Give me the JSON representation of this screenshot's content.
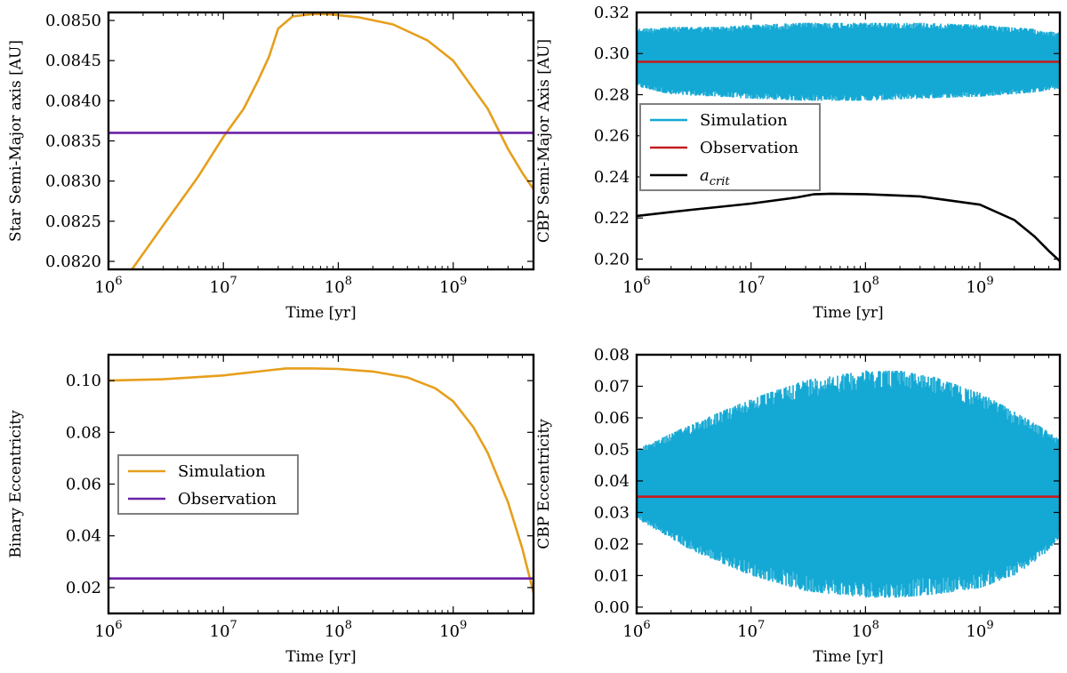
{
  "chart_data": [
    {
      "id": "star-a",
      "type": "line",
      "title": "",
      "xlabel": "Time [yr]",
      "ylabel": "Star Semi-Major axis [AU]",
      "xscale": "log",
      "xlim": [
        1000000,
        5000000000
      ],
      "ylim": [
        0.0819,
        0.0851
      ],
      "xticks": [
        {
          "value": 1000000,
          "base": "10",
          "exp": "6"
        },
        {
          "value": 10000000,
          "base": "10",
          "exp": "7"
        },
        {
          "value": 100000000,
          "base": "10",
          "exp": "8"
        },
        {
          "value": 1000000000,
          "base": "10",
          "exp": "9"
        }
      ],
      "yticks": [
        {
          "value": 0.082,
          "label": "0.0820"
        },
        {
          "value": 0.0825,
          "label": "0.0825"
        },
        {
          "value": 0.083,
          "label": "0.0830"
        },
        {
          "value": 0.0835,
          "label": "0.0835"
        },
        {
          "value": 0.084,
          "label": "0.0840"
        },
        {
          "value": 0.0845,
          "label": "0.0845"
        },
        {
          "value": 0.085,
          "label": "0.0850"
        }
      ],
      "series": [
        {
          "name": "Simulation",
          "color": "#e69f1c",
          "style": "line",
          "x": [
            1600000,
            3000000,
            6000000,
            10000000,
            15000000,
            20000000,
            25000000,
            30000000,
            40000000,
            60000000,
            80000000,
            150000000,
            300000000,
            600000000,
            1000000000,
            2000000000,
            3000000000,
            4000000000,
            5000000000
          ],
          "y": [
            0.0819,
            0.08245,
            0.08305,
            0.08355,
            0.0839,
            0.08425,
            0.08455,
            0.0849,
            0.08505,
            0.08508,
            0.08508,
            0.08504,
            0.08495,
            0.08475,
            0.0845,
            0.0839,
            0.0834,
            0.0831,
            0.0829
          ]
        },
        {
          "name": "Observation",
          "color": "#6a22a8",
          "style": "hline",
          "y": 0.0836
        }
      ]
    },
    {
      "id": "cbp-a",
      "type": "line",
      "title": "",
      "xlabel": "Time [yr]",
      "ylabel": "CBP Semi-Major Axis [AU]",
      "xscale": "log",
      "xlim": [
        1000000,
        5000000000
      ],
      "ylim": [
        0.195,
        0.32
      ],
      "xticks": [
        {
          "value": 1000000,
          "base": "10",
          "exp": "6"
        },
        {
          "value": 10000000,
          "base": "10",
          "exp": "7"
        },
        {
          "value": 100000000,
          "base": "10",
          "exp": "8"
        },
        {
          "value": 1000000000,
          "base": "10",
          "exp": "9"
        }
      ],
      "yticks": [
        {
          "value": 0.2,
          "label": "0.20"
        },
        {
          "value": 0.22,
          "label": "0.22"
        },
        {
          "value": 0.24,
          "label": "0.24"
        },
        {
          "value": 0.26,
          "label": "0.26"
        },
        {
          "value": 0.28,
          "label": "0.28"
        },
        {
          "value": 0.3,
          "label": "0.30"
        },
        {
          "value": 0.32,
          "label": "0.32"
        }
      ],
      "series": [
        {
          "name": "Simulation",
          "color": "#14a8d4",
          "style": "oscillation",
          "x": [
            1000000,
            2000000,
            5000000,
            10000000,
            30000000,
            100000000,
            300000000,
            1000000000,
            3000000000,
            5000000000
          ],
          "upper": [
            0.312,
            0.313,
            0.313,
            0.314,
            0.315,
            0.315,
            0.315,
            0.314,
            0.312,
            0.31
          ],
          "lower": [
            0.284,
            0.28,
            0.279,
            0.278,
            0.277,
            0.277,
            0.278,
            0.279,
            0.281,
            0.283
          ]
        },
        {
          "name": "Observation",
          "color": "#c41c1c",
          "style": "hline",
          "y": 0.296
        },
        {
          "name": "a_crit",
          "color": "#000000",
          "style": "line",
          "x": [
            1000000,
            3000000,
            10000000,
            25000000,
            35000000,
            50000000,
            100000000,
            300000000,
            1000000000,
            2000000000,
            3000000000,
            4000000000,
            5000000000
          ],
          "y": [
            0.221,
            0.224,
            0.227,
            0.23,
            0.2315,
            0.2318,
            0.2316,
            0.2305,
            0.2265,
            0.219,
            0.211,
            0.204,
            0.199
          ]
        }
      ],
      "legend": {
        "position": "center-left",
        "entries": [
          {
            "label": "Simulation",
            "color": "#14a8d4"
          },
          {
            "label": "Observation",
            "color": "#c41c1c"
          },
          {
            "label_base": "a",
            "label_sub": "crit",
            "color": "#000000"
          }
        ]
      }
    },
    {
      "id": "binary-e",
      "type": "line",
      "title": "",
      "xlabel": "Time [yr]",
      "ylabel": "Binary Eccentricity",
      "xscale": "log",
      "xlim": [
        1000000,
        5000000000
      ],
      "ylim": [
        0.01,
        0.11
      ],
      "xticks": [
        {
          "value": 1000000,
          "base": "10",
          "exp": "6"
        },
        {
          "value": 10000000,
          "base": "10",
          "exp": "7"
        },
        {
          "value": 100000000,
          "base": "10",
          "exp": "8"
        },
        {
          "value": 1000000000,
          "base": "10",
          "exp": "9"
        }
      ],
      "yticks": [
        {
          "value": 0.02,
          "label": "0.02"
        },
        {
          "value": 0.04,
          "label": "0.04"
        },
        {
          "value": 0.06,
          "label": "0.06"
        },
        {
          "value": 0.08,
          "label": "0.08"
        },
        {
          "value": 0.1,
          "label": "0.10"
        }
      ],
      "series": [
        {
          "name": "Simulation",
          "color": "#e69f1c",
          "style": "line",
          "x": [
            1000000,
            3000000,
            10000000,
            25000000,
            35000000,
            60000000,
            100000000,
            200000000,
            400000000,
            700000000,
            1000000000,
            1500000000,
            2000000000,
            3000000000,
            4000000000,
            5000000000
          ],
          "y": [
            0.1,
            0.1005,
            0.102,
            0.104,
            0.1047,
            0.1047,
            0.1045,
            0.1035,
            0.1012,
            0.097,
            0.092,
            0.082,
            0.072,
            0.053,
            0.035,
            0.018
          ]
        },
        {
          "name": "Observation",
          "color": "#6a22a8",
          "style": "hline",
          "y": 0.0235
        }
      ],
      "legend": {
        "position": "center-left",
        "entries": [
          {
            "label": "Simulation",
            "color": "#e69f1c"
          },
          {
            "label": "Observation",
            "color": "#6a22a8"
          }
        ]
      }
    },
    {
      "id": "cbp-e",
      "type": "line",
      "title": "",
      "xlabel": "Time [yr]",
      "ylabel": "CBP Eccentricity",
      "xscale": "log",
      "xlim": [
        1000000,
        5000000000
      ],
      "ylim": [
        -0.002,
        0.08
      ],
      "xticks": [
        {
          "value": 1000000,
          "base": "10",
          "exp": "6"
        },
        {
          "value": 10000000,
          "base": "10",
          "exp": "7"
        },
        {
          "value": 100000000,
          "base": "10",
          "exp": "8"
        },
        {
          "value": 1000000000,
          "base": "10",
          "exp": "9"
        }
      ],
      "yticks": [
        {
          "value": 0.0,
          "label": "0.00"
        },
        {
          "value": 0.01,
          "label": "0.01"
        },
        {
          "value": 0.02,
          "label": "0.02"
        },
        {
          "value": 0.03,
          "label": "0.03"
        },
        {
          "value": 0.04,
          "label": "0.04"
        },
        {
          "value": 0.05,
          "label": "0.05"
        },
        {
          "value": 0.06,
          "label": "0.06"
        },
        {
          "value": 0.07,
          "label": "0.07"
        },
        {
          "value": 0.08,
          "label": "0.08"
        }
      ],
      "series": [
        {
          "name": "Simulation",
          "color": "#14a8d4",
          "style": "oscillation",
          "x": [
            1000000,
            3000000,
            10000000,
            30000000,
            100000000,
            200000000,
            400000000,
            1000000000,
            2000000000,
            3500000000,
            5000000000
          ],
          "upper": [
            0.05,
            0.058,
            0.066,
            0.072,
            0.075,
            0.075,
            0.073,
            0.068,
            0.062,
            0.057,
            0.053
          ],
          "lower": [
            0.028,
            0.018,
            0.01,
            0.005,
            0.003,
            0.003,
            0.004,
            0.006,
            0.01,
            0.016,
            0.022
          ]
        },
        {
          "name": "Observation",
          "color": "#c41c1c",
          "style": "hline",
          "y": 0.035
        }
      ]
    }
  ]
}
